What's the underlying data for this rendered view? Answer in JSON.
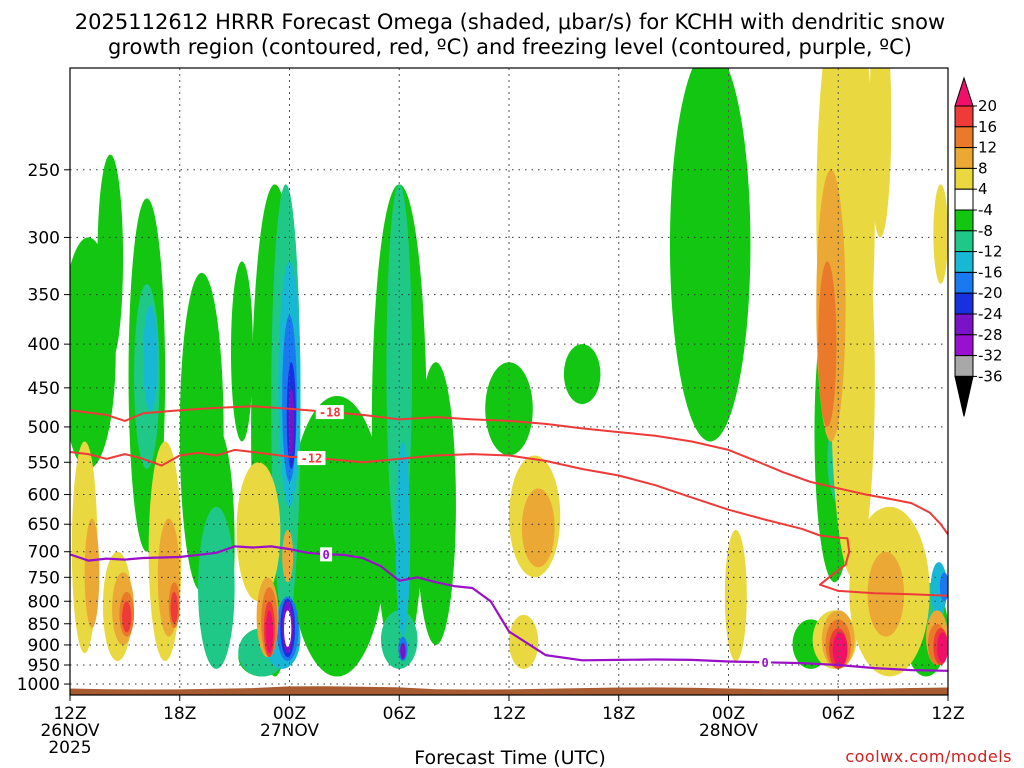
{
  "title_line1": "2025112612 HRRR Forecast Omega (shaded, μbar/s) for KCHH with dendritic snow",
  "title_line2": "growth region (contoured, red, ºC) and freezing level (contoured, purple, ºC)",
  "credit": "coolwx.com/models",
  "chart_data": {
    "type": "heatmap",
    "title": "2025112612 HRRR Forecast Omega (shaded, μbar/s) for KCHH with dendritic snow growth region (contoured, red, ºC) and freezing level (contoured, purple, ºC)",
    "xlabel": "Forecast Time (UTC)",
    "ylabel": "",
    "xlim_hours": [
      0,
      48
    ],
    "ylim_hpa": [
      1030,
      190
    ],
    "yticks": [
      250,
      300,
      350,
      400,
      450,
      500,
      550,
      600,
      650,
      700,
      750,
      800,
      850,
      900,
      950,
      1000
    ],
    "xticks": [
      {
        "hour": 0,
        "lines": [
          "12Z",
          "26NOV",
          "2025"
        ]
      },
      {
        "hour": 6,
        "lines": [
          "18Z"
        ]
      },
      {
        "hour": 12,
        "lines": [
          "00Z",
          "27NOV"
        ]
      },
      {
        "hour": 18,
        "lines": [
          "06Z"
        ]
      },
      {
        "hour": 24,
        "lines": [
          "12Z"
        ]
      },
      {
        "hour": 30,
        "lines": [
          "18Z"
        ]
      },
      {
        "hour": 36,
        "lines": [
          "00Z",
          "28NOV"
        ]
      },
      {
        "hour": 42,
        "lines": [
          "06Z"
        ]
      },
      {
        "hour": 48,
        "lines": [
          "12Z"
        ]
      }
    ],
    "colorbar": {
      "labels": [
        "20",
        "16",
        "12",
        "8",
        "4",
        "-4",
        "-8",
        "-12",
        "-16",
        "-20",
        "-24",
        "-28",
        "-32",
        "-36"
      ],
      "colors": [
        "#f0106a",
        "#ee3a38",
        "#ea7a2a",
        "#eba835",
        "#e9d840",
        "#ffffff",
        "#12c612",
        "#1fc887",
        "#18b8d4",
        "#1a78f0",
        "#1830e0",
        "#7a12c8",
        "#9a10d0",
        "#a8a8a8",
        "#000000"
      ]
    },
    "terrain_color": "#a85a30",
    "dgz_contours": [
      {
        "label": "-18",
        "color": "#ee3a38",
        "label_hour": 14.2,
        "points": [
          [
            0,
            478
          ],
          [
            2,
            484
          ],
          [
            3,
            492
          ],
          [
            4,
            482
          ],
          [
            6,
            478
          ],
          [
            8,
            475
          ],
          [
            10,
            473
          ],
          [
            12,
            476
          ],
          [
            14,
            480
          ],
          [
            16,
            484
          ],
          [
            18,
            490
          ],
          [
            20,
            487
          ],
          [
            22,
            490
          ],
          [
            24,
            492
          ],
          [
            26,
            496
          ],
          [
            28,
            502
          ],
          [
            30,
            507
          ],
          [
            32,
            512
          ],
          [
            34,
            520
          ],
          [
            36,
            532
          ],
          [
            37.5,
            548
          ],
          [
            39,
            565
          ],
          [
            40.5,
            580
          ],
          [
            42,
            590
          ],
          [
            43.5,
            600
          ],
          [
            45,
            608
          ],
          [
            46,
            614
          ],
          [
            47,
            630
          ],
          [
            47.6,
            650
          ],
          [
            48,
            668
          ]
        ]
      },
      {
        "label": "-12",
        "color": "#ee3a38",
        "label_hour": 13.2,
        "points": [
          [
            0,
            535
          ],
          [
            1,
            538
          ],
          [
            2,
            545
          ],
          [
            3,
            538
          ],
          [
            4,
            545
          ],
          [
            5,
            555
          ],
          [
            6,
            540
          ],
          [
            7,
            536
          ],
          [
            8,
            540
          ],
          [
            9,
            532
          ],
          [
            10,
            535
          ],
          [
            12,
            542
          ],
          [
            14,
            545
          ],
          [
            16,
            550
          ],
          [
            18,
            545
          ],
          [
            20,
            540
          ],
          [
            22,
            538
          ],
          [
            24,
            540
          ],
          [
            26,
            548
          ],
          [
            28,
            560
          ],
          [
            30,
            570
          ],
          [
            32,
            585
          ],
          [
            34,
            605
          ],
          [
            36,
            625
          ],
          [
            38,
            642
          ],
          [
            40,
            658
          ],
          [
            41,
            670
          ],
          [
            42,
            674
          ],
          [
            42.5,
            675
          ],
          [
            42.6,
            700
          ],
          [
            42.4,
            725
          ],
          [
            41.5,
            750
          ],
          [
            41,
            765
          ],
          [
            42,
            778
          ],
          [
            44,
            783
          ],
          [
            46,
            785
          ],
          [
            48,
            788
          ]
        ]
      }
    ],
    "freezing_contour": {
      "label": "0",
      "color": "#9a10c8",
      "label_hour": 14.0,
      "label2_hour": 38.0,
      "points": [
        [
          0,
          705
        ],
        [
          1,
          717
        ],
        [
          2,
          713
        ],
        [
          3,
          715
        ],
        [
          4,
          712
        ],
        [
          6,
          710
        ],
        [
          8,
          702
        ],
        [
          9,
          690
        ],
        [
          10,
          692
        ],
        [
          11,
          690
        ],
        [
          12,
          695
        ],
        [
          13,
          702
        ],
        [
          14,
          705
        ],
        [
          15,
          706
        ],
        [
          16,
          712
        ],
        [
          17,
          728
        ],
        [
          18,
          757
        ],
        [
          19,
          750
        ],
        [
          20,
          760
        ],
        [
          21,
          768
        ],
        [
          22,
          772
        ],
        [
          23,
          800
        ],
        [
          24,
          868
        ],
        [
          26,
          925
        ],
        [
          28,
          938
        ],
        [
          30,
          937
        ],
        [
          32,
          936
        ],
        [
          34,
          937
        ],
        [
          36,
          941
        ],
        [
          38,
          943
        ],
        [
          40,
          945
        ],
        [
          42,
          950
        ],
        [
          44,
          958
        ],
        [
          46,
          963
        ],
        [
          48,
          965
        ]
      ]
    },
    "omega_fields": [
      {
        "color": "#12c612",
        "blobs": [
          [
            1,
            300,
            3,
            560
          ],
          [
            2.2,
            240,
            1.4,
            420
          ],
          [
            4.2,
            270,
            2,
            700
          ],
          [
            7.2,
            330,
            2.4,
            780
          ],
          [
            8,
            500,
            2,
            940
          ],
          [
            9.4,
            320,
            1.2,
            520
          ],
          [
            11.2,
            260,
            2.6,
            980
          ],
          [
            10.5,
            880,
            2.6,
            980
          ],
          [
            14.6,
            460,
            5.4,
            980
          ],
          [
            18,
            260,
            3,
            960
          ],
          [
            20,
            420,
            2.2,
            900
          ],
          [
            24,
            420,
            2.6,
            540
          ],
          [
            28,
            400,
            2,
            470
          ],
          [
            35,
            180,
            4.4,
            520
          ],
          [
            41.8,
            340,
            2.2,
            760
          ],
          [
            40.5,
            840,
            2,
            960
          ],
          [
            46.8,
            760,
            2.4,
            980
          ]
        ]
      },
      {
        "color": "#1fc887",
        "blobs": [
          [
            4.2,
            340,
            1.4,
            560
          ],
          [
            8,
            620,
            2,
            960
          ],
          [
            11.8,
            260,
            1.6,
            860
          ],
          [
            18,
            260,
            1.4,
            700
          ],
          [
            18,
            820,
            2,
            960
          ],
          [
            42.2,
            480,
            1.6,
            620
          ],
          [
            47.2,
            760,
            1.2,
            860
          ],
          [
            10.5,
            860,
            2.6,
            980
          ]
        ]
      },
      {
        "color": "#18b8d4",
        "blobs": [
          [
            4.4,
            360,
            0.8,
            480
          ],
          [
            12,
            320,
            1.2,
            620
          ],
          [
            18.2,
            520,
            0.8,
            880
          ],
          [
            42.4,
            490,
            1,
            560
          ],
          [
            11.6,
            810,
            2,
            960
          ],
          [
            47.5,
            720,
            0.9,
            830
          ]
        ]
      },
      {
        "color": "#1a78f0",
        "blobs": [
          [
            12,
            370,
            0.8,
            580
          ],
          [
            18.2,
            880,
            0.5,
            940
          ],
          [
            11.9,
            790,
            1.2,
            940
          ],
          [
            42.6,
            500,
            0.5,
            545
          ],
          [
            47.8,
            740,
            0.5,
            800
          ]
        ]
      },
      {
        "color": "#1830e0",
        "blobs": [
          [
            12.1,
            420,
            0.5,
            560
          ],
          [
            11.9,
            795,
            0.8,
            930
          ]
        ]
      },
      {
        "color": "#7a12c8",
        "blobs": [
          [
            12.1,
            450,
            0.3,
            540
          ],
          [
            11.9,
            800,
            0.6,
            920
          ],
          [
            18.2,
            895,
            0.3,
            935
          ]
        ]
      },
      {
        "color": "#ffffff",
        "blobs": [
          [
            11.9,
            820,
            0.4,
            905
          ]
        ]
      },
      {
        "color": "#e9d840",
        "blobs": [
          [
            0.8,
            520,
            1.4,
            920
          ],
          [
            2.6,
            700,
            1.6,
            940
          ],
          [
            5.2,
            520,
            1.8,
            940
          ],
          [
            10.3,
            550,
            2.4,
            800
          ],
          [
            25.4,
            540,
            2.8,
            750
          ],
          [
            36.4,
            660,
            1.2,
            940
          ],
          [
            42.4,
            150,
            3.2,
            520
          ],
          [
            44.3,
            160,
            1.2,
            300
          ],
          [
            42.8,
            260,
            2.4,
            750
          ],
          [
            44.8,
            620,
            4.4,
            980
          ],
          [
            47.6,
            260,
            0.8,
            340
          ],
          [
            41.8,
            820,
            2.4,
            960
          ],
          [
            24.8,
            830,
            1.6,
            960
          ]
        ]
      },
      {
        "color": "#eba835",
        "blobs": [
          [
            1.2,
            640,
            0.8,
            860
          ],
          [
            2.9,
            740,
            1.2,
            900
          ],
          [
            5.4,
            640,
            1.2,
            880
          ],
          [
            11.9,
            660,
            0.6,
            760
          ],
          [
            10.8,
            750,
            1.2,
            930
          ],
          [
            25.6,
            590,
            1.8,
            730
          ],
          [
            41.6,
            250,
            1.6,
            520
          ],
          [
            42,
            820,
            1.8,
            960
          ],
          [
            44.6,
            700,
            2,
            880
          ],
          [
            47.4,
            820,
            1.2,
            950
          ]
        ]
      },
      {
        "color": "#ea7a2a",
        "blobs": [
          [
            3.1,
            780,
            0.8,
            880
          ],
          [
            5.7,
            760,
            0.6,
            860
          ],
          [
            10.9,
            770,
            0.9,
            930
          ],
          [
            41.4,
            320,
            1,
            500
          ],
          [
            42,
            840,
            1.4,
            960
          ],
          [
            47.4,
            850,
            1,
            950
          ]
        ]
      },
      {
        "color": "#ee3a38",
        "blobs": [
          [
            3.1,
            800,
            0.5,
            870
          ],
          [
            5.7,
            780,
            0.4,
            850
          ],
          [
            10.9,
            800,
            0.6,
            930
          ],
          [
            42,
            860,
            1,
            960
          ],
          [
            47.6,
            860,
            0.8,
            950
          ]
        ]
      },
      {
        "color": "#f0106a",
        "blobs": [
          [
            10.9,
            820,
            0.4,
            920
          ],
          [
            42.1,
            870,
            0.8,
            955
          ],
          [
            47.7,
            870,
            0.6,
            945
          ]
        ]
      }
    ]
  }
}
